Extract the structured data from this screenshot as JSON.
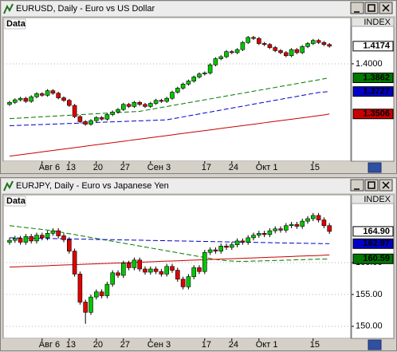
{
  "chart_data": [
    {
      "type": "candlestick",
      "title": "EURUSD, Daily - Euro vs US Dollar",
      "label": "Data",
      "axis_label": "INDEX",
      "categories": [
        null,
        null,
        null,
        null,
        null,
        null,
        "Авг 6",
        null,
        null,
        null,
        null,
        "13",
        null,
        null,
        null,
        null,
        "20",
        null,
        null,
        null,
        null,
        "27",
        null,
        null,
        null,
        null,
        "Сен 3",
        null,
        null,
        null,
        null,
        null,
        null,
        null,
        null,
        null,
        "17",
        null,
        null,
        null,
        null,
        "24",
        null,
        null,
        null,
        null,
        "Окт 1",
        null,
        null,
        null,
        null,
        null,
        null,
        null,
        null,
        null,
        "15",
        null,
        null,
        null
      ],
      "open": [
        1.36,
        1.362,
        1.3645,
        1.366,
        1.363,
        1.3675,
        1.3705,
        1.369,
        1.3735,
        1.371,
        1.3665,
        1.364,
        1.359,
        1.348,
        1.343,
        1.3405,
        1.344,
        1.347,
        1.3455,
        1.35,
        1.3525,
        1.355,
        1.36,
        1.358,
        1.362,
        1.36,
        1.358,
        1.361,
        1.364,
        1.363,
        1.366,
        1.372,
        1.376,
        1.38,
        1.383,
        1.387,
        1.39,
        1.391,
        1.399,
        1.405,
        1.407,
        1.412,
        1.411,
        1.414,
        1.421,
        1.426,
        1.425,
        1.42,
        1.419,
        1.416,
        1.413,
        1.411,
        1.408,
        1.414,
        1.411,
        1.417,
        1.42,
        1.423,
        1.421,
        1.419
      ],
      "high": [
        1.3635,
        1.366,
        1.3675,
        1.3675,
        1.369,
        1.372,
        1.372,
        1.375,
        1.375,
        1.3725,
        1.368,
        1.3655,
        1.3605,
        1.3495,
        1.3445,
        1.3455,
        1.3485,
        1.3485,
        1.3515,
        1.354,
        1.3565,
        1.3615,
        1.3615,
        1.3635,
        1.3635,
        1.3615,
        1.3625,
        1.3655,
        1.3655,
        1.3675,
        1.3735,
        1.3775,
        1.3815,
        1.3845,
        1.3885,
        1.3915,
        1.3925,
        1.4005,
        1.4065,
        1.4085,
        1.4135,
        1.4135,
        1.4155,
        1.4225,
        1.4275,
        1.4275,
        1.4265,
        1.4215,
        1.4205,
        1.4175,
        1.4145,
        1.4125,
        1.4155,
        1.4155,
        1.4185,
        1.4215,
        1.4245,
        1.4245,
        1.4225,
        1.4205
      ],
      "low": [
        1.3585,
        1.3605,
        1.363,
        1.3615,
        1.3615,
        1.366,
        1.3675,
        1.3675,
        1.3695,
        1.365,
        1.3625,
        1.3575,
        1.3465,
        1.3415,
        1.339,
        1.339,
        1.3425,
        1.344,
        1.344,
        1.3485,
        1.351,
        1.3535,
        1.3565,
        1.3565,
        1.3585,
        1.3565,
        1.3565,
        1.3595,
        1.3615,
        1.3615,
        1.3645,
        1.3705,
        1.3745,
        1.3785,
        1.3815,
        1.3855,
        1.3885,
        1.3895,
        1.3975,
        1.4035,
        1.4055,
        1.4095,
        1.4095,
        1.4125,
        1.4195,
        1.4235,
        1.4185,
        1.4175,
        1.4145,
        1.4115,
        1.4095,
        1.4065,
        1.4065,
        1.4095,
        1.4095,
        1.4155,
        1.4185,
        1.4195,
        1.4175,
        1.4159
      ],
      "close": [
        1.362,
        1.3645,
        1.366,
        1.363,
        1.3675,
        1.3705,
        1.369,
        1.3735,
        1.371,
        1.3665,
        1.364,
        1.359,
        1.348,
        1.343,
        1.3405,
        1.344,
        1.347,
        1.3455,
        1.35,
        1.3525,
        1.355,
        1.36,
        1.358,
        1.362,
        1.36,
        1.358,
        1.361,
        1.364,
        1.363,
        1.366,
        1.372,
        1.376,
        1.38,
        1.383,
        1.387,
        1.39,
        1.391,
        1.399,
        1.405,
        1.407,
        1.412,
        1.411,
        1.414,
        1.421,
        1.426,
        1.425,
        1.42,
        1.419,
        1.416,
        1.413,
        1.411,
        1.408,
        1.414,
        1.411,
        1.417,
        1.42,
        1.423,
        1.421,
        1.419,
        1.4174
      ],
      "up_color": "#00c800",
      "down_color": "#e00000",
      "series": [
        {
          "color": "#007800",
          "dash": true,
          "values": [
            1.346,
            1.3463,
            1.3466,
            1.3469,
            1.3472,
            1.3475,
            1.3478,
            1.3481,
            1.3484,
            1.3487,
            1.349,
            1.3493,
            1.3496,
            1.3499,
            1.3502,
            1.3505,
            1.3508,
            1.3511,
            1.3514,
            1.3517,
            1.352,
            1.3523,
            1.3526,
            1.3529,
            1.3532,
            1.3541,
            1.3551,
            1.356,
            1.357,
            1.3579,
            1.3589,
            1.3598,
            1.3607,
            1.3617,
            1.3626,
            1.3636,
            1.3645,
            1.3654,
            1.3664,
            1.3673,
            1.3683,
            1.3692,
            1.3701,
            1.3711,
            1.372,
            1.373,
            1.3739,
            1.3748,
            1.3758,
            1.3767,
            1.3777,
            1.3786,
            1.3795,
            1.3805,
            1.3814,
            1.3824,
            1.3833,
            1.3842,
            1.3852,
            1.3862
          ]
        },
        {
          "color": "#0000c8",
          "dash": true,
          "values": [
            1.339,
            1.3392,
            1.3394,
            1.3396,
            1.3398,
            1.34,
            1.3402,
            1.3404,
            1.3406,
            1.3408,
            1.341,
            1.3412,
            1.3414,
            1.3416,
            1.3418,
            1.342,
            1.3422,
            1.3424,
            1.3426,
            1.3428,
            1.343,
            1.3432,
            1.3434,
            1.3436,
            1.3438,
            1.344,
            1.3442,
            1.3444,
            1.3446,
            1.3448,
            1.3458,
            1.3467,
            1.3477,
            1.3487,
            1.3496,
            1.3506,
            1.3516,
            1.3525,
            1.3535,
            1.3544,
            1.3554,
            1.3564,
            1.3573,
            1.3583,
            1.3592,
            1.3602,
            1.3612,
            1.3621,
            1.3631,
            1.3641,
            1.365,
            1.366,
            1.3669,
            1.3679,
            1.3689,
            1.3698,
            1.3708,
            1.3717,
            1.3722,
            1.3727
          ]
        },
        {
          "color": "#c80000",
          "dash": false,
          "values": [
            1.309,
            1.3097,
            1.3104,
            1.3111,
            1.3118,
            1.3125,
            1.3132,
            1.3139,
            1.3146,
            1.3153,
            1.316,
            1.3167,
            1.3174,
            1.3181,
            1.3188,
            1.3195,
            1.3202,
            1.3209,
            1.3216,
            1.3223,
            1.323,
            1.3237,
            1.3244,
            1.3251,
            1.3258,
            1.3265,
            1.3272,
            1.3279,
            1.3286,
            1.3293,
            1.33,
            1.3307,
            1.3314,
            1.3321,
            1.3328,
            1.3335,
            1.3342,
            1.3349,
            1.3356,
            1.3363,
            1.337,
            1.3377,
            1.3384,
            1.3391,
            1.3398,
            1.3405,
            1.3412,
            1.3419,
            1.3426,
            1.3433,
            1.344,
            1.3447,
            1.3454,
            1.3461,
            1.3468,
            1.3475,
            1.3482,
            1.3489,
            1.3496,
            1.3506
          ]
        }
      ],
      "markers": [
        {
          "value": 1.4174,
          "label": "1.4174",
          "color": "#ffffff"
        },
        {
          "value": 1.3862,
          "label": "1.3862",
          "color": "#007800"
        },
        {
          "value": 1.3727,
          "label": "1.3727",
          "color": "#0000c8"
        },
        {
          "value": 1.3506,
          "label": "1.3506",
          "color": "#c80000"
        }
      ],
      "ylim": [
        1.304,
        1.444
      ],
      "yticks": [
        {
          "value": 1.4,
          "label": "1.4000"
        }
      ],
      "grid": true
    },
    {
      "type": "candlestick",
      "title": "EURJPY, Daily - Euro vs Japanese Yen",
      "label": "Data",
      "axis_label": "INDEX",
      "categories": [
        null,
        null,
        null,
        null,
        null,
        null,
        "Авг 6",
        null,
        null,
        null,
        null,
        "13",
        null,
        null,
        null,
        null,
        "20",
        null,
        null,
        null,
        null,
        "27",
        null,
        null,
        null,
        null,
        "Сен 3",
        null,
        null,
        null,
        null,
        null,
        null,
        null,
        null,
        null,
        "17",
        null,
        null,
        null,
        null,
        "24",
        null,
        null,
        null,
        null,
        "Окт 1",
        null,
        null,
        null,
        null,
        null,
        null,
        null,
        null,
        null,
        "15",
        null,
        null,
        null
      ],
      "open": [
        163.2,
        163.5,
        163.8,
        163.2,
        164.1,
        163.4,
        164.3,
        163.9,
        164.6,
        165.0,
        164.2,
        163.6,
        161.8,
        158.2,
        153.8,
        152.2,
        154.6,
        155.4,
        154.8,
        156.6,
        158.4,
        158.0,
        159.9,
        159.2,
        160.4,
        159.0,
        158.5,
        159.0,
        158.6,
        158.2,
        159.4,
        158.8,
        157.4,
        156.2,
        157.8,
        159.2,
        158.6,
        161.6,
        162.0,
        161.8,
        162.6,
        162.4,
        162.8,
        163.4,
        163.2,
        163.9,
        164.3,
        164.6,
        164.4,
        165.0,
        165.3,
        165.1,
        165.8,
        166.0,
        165.7,
        166.5,
        166.9,
        167.4,
        166.7,
        165.8
      ],
      "high": [
        163.9,
        164.2,
        164.2,
        164.5,
        164.5,
        164.7,
        164.7,
        165.0,
        165.4,
        165.4,
        164.6,
        164.0,
        162.2,
        158.6,
        154.2,
        155.0,
        155.8,
        155.8,
        157.0,
        158.8,
        158.8,
        160.3,
        160.3,
        160.8,
        160.8,
        159.4,
        159.4,
        159.4,
        159.0,
        159.8,
        159.8,
        159.2,
        157.8,
        158.2,
        159.6,
        159.6,
        162.0,
        162.4,
        162.4,
        163.0,
        163.0,
        163.2,
        163.8,
        163.8,
        164.3,
        164.7,
        165.0,
        165.0,
        165.4,
        165.7,
        165.7,
        166.2,
        166.4,
        166.4,
        166.9,
        167.3,
        167.8,
        167.8,
        167.1,
        166.2
      ],
      "low": [
        162.8,
        163.1,
        162.8,
        162.8,
        163.0,
        163.0,
        163.5,
        163.5,
        164.2,
        163.8,
        163.2,
        161.4,
        157.8,
        153.4,
        150.4,
        151.8,
        154.2,
        154.4,
        154.4,
        156.2,
        157.6,
        157.6,
        158.8,
        158.8,
        158.6,
        158.1,
        158.1,
        158.2,
        157.8,
        157.8,
        158.4,
        157.0,
        155.8,
        155.8,
        157.4,
        158.2,
        158.2,
        161.2,
        161.4,
        161.4,
        162.0,
        162.0,
        162.4,
        162.8,
        162.8,
        163.5,
        163.9,
        164.0,
        164.0,
        164.6,
        164.7,
        164.7,
        165.4,
        165.3,
        165.3,
        166.1,
        166.5,
        166.3,
        165.4,
        164.5
      ],
      "close": [
        163.5,
        163.8,
        163.2,
        164.1,
        163.4,
        164.3,
        163.9,
        164.6,
        165.0,
        164.2,
        163.6,
        161.8,
        158.2,
        153.8,
        152.2,
        154.6,
        155.4,
        154.8,
        156.6,
        158.4,
        158.0,
        159.9,
        159.2,
        160.4,
        159.0,
        158.5,
        159.0,
        158.6,
        158.2,
        159.4,
        158.8,
        157.4,
        156.2,
        157.8,
        159.2,
        158.6,
        161.6,
        162.0,
        161.8,
        162.6,
        162.4,
        162.8,
        163.4,
        163.2,
        163.9,
        164.3,
        164.6,
        164.4,
        165.0,
        165.3,
        165.1,
        165.8,
        166.0,
        165.7,
        166.5,
        166.9,
        167.4,
        166.7,
        165.8,
        164.9
      ],
      "up_color": "#00c800",
      "down_color": "#e00000",
      "series": [
        {
          "color": "#007800",
          "dash": true,
          "values": [
            165.8,
            165.7,
            165.6,
            165.5,
            165.4,
            165.3,
            165.2,
            165.1,
            165.0,
            164.85,
            164.7,
            164.55,
            164.4,
            164.25,
            164.1,
            163.95,
            163.8,
            163.65,
            163.5,
            163.35,
            163.2,
            163.05,
            162.9,
            162.75,
            162.6,
            162.45,
            162.3,
            162.15,
            162.0,
            161.85,
            161.7,
            161.55,
            161.4,
            161.25,
            161.1,
            160.95,
            160.8,
            160.65,
            160.5,
            160.4,
            160.3,
            160.25,
            160.2,
            160.2,
            160.2,
            160.25,
            160.25,
            160.3,
            160.3,
            160.35,
            160.35,
            160.4,
            160.4,
            160.45,
            160.45,
            160.5,
            160.5,
            160.55,
            160.55,
            160.59
          ]
        },
        {
          "color": "#0000c8",
          "dash": true,
          "values": [
            163.9,
            163.88,
            163.87,
            163.85,
            163.84,
            163.82,
            163.8,
            163.79,
            163.77,
            163.76,
            163.74,
            163.72,
            163.71,
            163.69,
            163.68,
            163.66,
            163.64,
            163.63,
            163.61,
            163.6,
            163.58,
            163.56,
            163.55,
            163.53,
            163.52,
            163.5,
            163.48,
            163.47,
            163.45,
            163.44,
            163.42,
            163.4,
            163.39,
            163.37,
            163.36,
            163.34,
            163.32,
            163.31,
            163.29,
            163.28,
            163.26,
            163.24,
            163.23,
            163.21,
            163.2,
            163.18,
            163.16,
            163.15,
            163.13,
            163.12,
            163.1,
            163.08,
            163.07,
            163.05,
            163.04,
            163.02,
            163.01,
            163.0,
            162.98,
            162.97
          ]
        },
        {
          "color": "#c80000",
          "dash": false,
          "values": [
            159.3,
            159.33,
            159.36,
            159.4,
            159.43,
            159.46,
            159.49,
            159.52,
            159.56,
            159.59,
            159.62,
            159.65,
            159.68,
            159.72,
            159.75,
            159.78,
            159.81,
            159.84,
            159.88,
            159.91,
            159.94,
            159.97,
            160.0,
            160.04,
            160.07,
            160.1,
            160.13,
            160.16,
            160.2,
            160.23,
            160.26,
            160.29,
            160.32,
            160.36,
            160.39,
            160.42,
            160.45,
            160.48,
            160.52,
            160.55,
            160.58,
            160.61,
            160.64,
            160.68,
            160.71,
            160.74,
            160.77,
            160.8,
            160.84,
            160.87,
            160.9,
            160.93,
            160.96,
            161.0,
            161.03,
            161.06,
            161.09,
            161.12,
            161.16,
            161.2
          ]
        }
      ],
      "markers": [
        {
          "value": 164.9,
          "label": "164.90",
          "color": "#ffffff"
        },
        {
          "value": 162.97,
          "label": "162.97",
          "color": "#0000c8"
        },
        {
          "value": 160.59,
          "label": "160.59",
          "color": "#007800"
        }
      ],
      "ylim": [
        148.1,
        170.4
      ],
      "yticks": [
        {
          "value": 150,
          "label": "150.00"
        },
        {
          "value": 155,
          "label": "155.00"
        },
        {
          "value": 160,
          "label": "160.00"
        }
      ],
      "grid": true
    }
  ]
}
